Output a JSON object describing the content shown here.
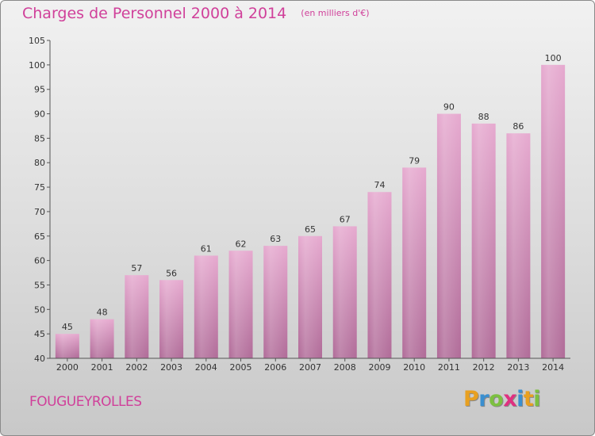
{
  "header": {
    "title": "Charges de Personnel 2000 à 2014",
    "subtitle": "(en milliers d'€)"
  },
  "footer": {
    "city": "FOUGUEYROLLES",
    "logo_letters": [
      "P",
      "r",
      "o",
      "x",
      "i",
      "t",
      "i"
    ],
    "logo_colors": [
      "#e8a020",
      "#3a8fd0",
      "#7cc040",
      "#e03080",
      "#3a8fd0",
      "#e8a020",
      "#7cc040"
    ]
  },
  "colors": {
    "title": "#d0409a",
    "bar_top": "#e6a9cf",
    "bar_bottom": "#b06b98"
  },
  "chart_data": {
    "type": "bar",
    "title": "Charges de Personnel 2000 à 2014",
    "subtitle": "(en milliers d'€)",
    "categories": [
      "2000",
      "2001",
      "2002",
      "2003",
      "2004",
      "2005",
      "2006",
      "2007",
      "2008",
      "2009",
      "2010",
      "2011",
      "2012",
      "2013",
      "2014"
    ],
    "values": [
      45,
      48,
      57,
      56,
      61,
      62,
      63,
      65,
      67,
      74,
      79,
      90,
      88,
      86,
      100
    ],
    "ylim": [
      40,
      105
    ],
    "yticks": [
      40,
      45,
      50,
      55,
      60,
      65,
      70,
      75,
      80,
      85,
      90,
      95,
      100,
      105
    ],
    "grid": false,
    "xlabel": "",
    "ylabel": ""
  }
}
